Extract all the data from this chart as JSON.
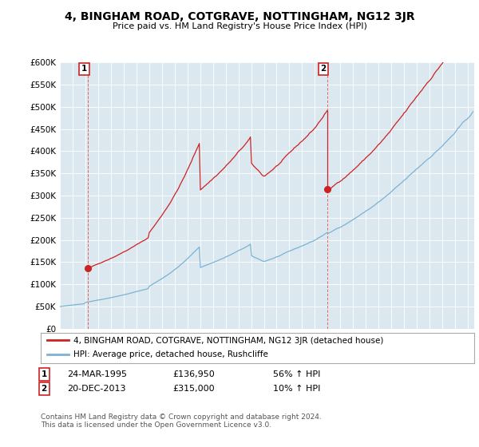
{
  "title": "4, BINGHAM ROAD, COTGRAVE, NOTTINGHAM, NG12 3JR",
  "subtitle": "Price paid vs. HM Land Registry's House Price Index (HPI)",
  "ylim": [
    0,
    600000
  ],
  "ytick_vals": [
    0,
    50000,
    100000,
    150000,
    200000,
    250000,
    300000,
    350000,
    400000,
    450000,
    500000,
    550000,
    600000
  ],
  "ytick_labels": [
    "£0",
    "£50K",
    "£100K",
    "£150K",
    "£200K",
    "£250K",
    "£300K",
    "£350K",
    "£400K",
    "£450K",
    "£500K",
    "£550K",
    "£600K"
  ],
  "hpi_color": "#7ab3d4",
  "price_color": "#cc2222",
  "plot_bg_color": "#dce8f0",
  "fig_bg_color": "#ffffff",
  "grid_color": "#ffffff",
  "vline_color": "#dd4444",
  "legend_label_price": "4, BINGHAM ROAD, COTGRAVE, NOTTINGHAM, NG12 3JR (detached house)",
  "legend_label_hpi": "HPI: Average price, detached house, Rushcliffe",
  "transaction1_date": "24-MAR-1995",
  "transaction1_price": "£136,950",
  "transaction1_hpi": "56% ↑ HPI",
  "transaction2_date": "20-DEC-2013",
  "transaction2_price": "£315,000",
  "transaction2_hpi": "10% ↑ HPI",
  "footer": "Contains HM Land Registry data © Crown copyright and database right 2024.\nThis data is licensed under the Open Government Licence v3.0.",
  "marker1_x": 1995.22,
  "marker1_y": 136950,
  "marker2_x": 2013.97,
  "marker2_y": 315000,
  "xmin": 1993.0,
  "xmax": 2025.5
}
